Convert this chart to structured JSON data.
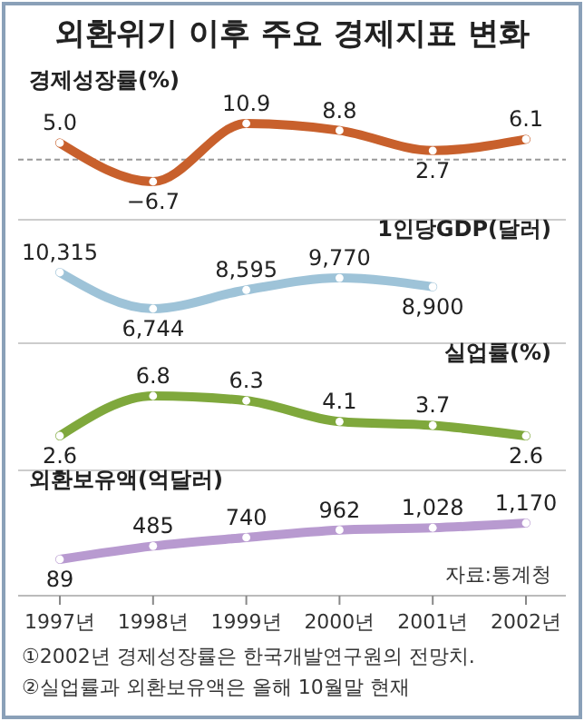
{
  "chart_data": [
    {
      "type": "line",
      "title": "외환위기 이후 주요 경제지표 변화",
      "ylabel": "경제성장률(%)",
      "categories": [
        null,
        null,
        null,
        null,
        null,
        null
      ],
      "tick_labels": false,
      "marker": "circle",
      "data_labels": true,
      "series": [
        {
          "color": "#c8602c",
          "values": [
            5.0,
            -6.7,
            10.9,
            8.8,
            2.7,
            6.1
          ],
          "value_labels": [
            "5.0",
            "−6.7",
            "10.9",
            "8.8",
            "2.7",
            "6.1"
          ]
        }
      ],
      "ref_lines": [
        {
          "axis": "y",
          "value": 0,
          "line_style": "dashed",
          "color": "#999999"
        }
      ]
    },
    {
      "type": "line",
      "ylabel": "1인당GDP(달러)",
      "categories": [
        null,
        null,
        null,
        null,
        null,
        null
      ],
      "tick_labels": false,
      "marker": "circle",
      "data_labels": true,
      "series": [
        {
          "color": "#9ec3d8",
          "values": [
            10315,
            6744,
            8595,
            9770,
            8900,
            null
          ],
          "value_labels": [
            "10,315",
            "6,744",
            "8,595",
            "9,770",
            "8,900",
            null
          ]
        }
      ]
    },
    {
      "type": "line",
      "ylabel": "실업률(%)",
      "categories": [
        null,
        null,
        null,
        null,
        null,
        null
      ],
      "tick_labels": false,
      "marker": "circle",
      "data_labels": true,
      "series": [
        {
          "color": "#7fa83c",
          "values": [
            2.6,
            6.8,
            6.3,
            4.1,
            3.7,
            2.6
          ],
          "value_labels": [
            "2.6",
            "6.8",
            "6.3",
            "4.1",
            "3.7",
            "2.6"
          ]
        }
      ]
    },
    {
      "type": "line",
      "ylabel": "외환보유액(억달러)",
      "categories": [
        "1997년",
        "1998년",
        "1999년",
        "2000년",
        "2001년",
        "2002년"
      ],
      "tick_labels": "x",
      "marker": "circle",
      "data_labels": true,
      "series": [
        {
          "color": "#b89ad0",
          "values": [
            89,
            485,
            740,
            962,
            1028,
            1170
          ],
          "value_labels": [
            "89",
            "485",
            "740",
            "962",
            "1,028",
            "1,170"
          ]
        }
      ],
      "annotations": [
        "자료:통계청",
        "①2002년 경제성장률은 한국개발연구원의 전망치.",
        "②실업률과 외환보유액은 올해 10월말 현재"
      ]
    }
  ]
}
